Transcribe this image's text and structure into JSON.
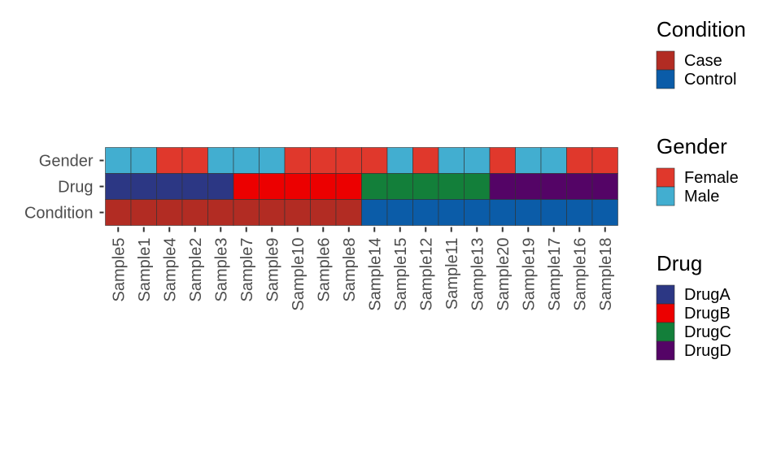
{
  "chart_data": {
    "type": "heatmap",
    "title": "",
    "xlabel": "",
    "ylabel": "",
    "grid": false,
    "legend_placement": "right",
    "rows": [
      "Gender",
      "Drug",
      "Condition"
    ],
    "columns": [
      "Sample5",
      "Sample1",
      "Sample4",
      "Sample2",
      "Sample3",
      "Sample7",
      "Sample9",
      "Sample10",
      "Sample6",
      "Sample8",
      "Sample14",
      "Sample15",
      "Sample12",
      "Sample11",
      "Sample13",
      "Sample20",
      "Sample19",
      "Sample17",
      "Sample16",
      "Sample18"
    ],
    "values": {
      "Gender": [
        "Male",
        "Male",
        "Female",
        "Female",
        "Male",
        "Male",
        "Male",
        "Female",
        "Female",
        "Female",
        "Female",
        "Male",
        "Female",
        "Male",
        "Male",
        "Female",
        "Male",
        "Male",
        "Female",
        "Female"
      ],
      "Drug": [
        "DrugA",
        "DrugA",
        "DrugA",
        "DrugA",
        "DrugA",
        "DrugB",
        "DrugB",
        "DrugB",
        "DrugB",
        "DrugB",
        "DrugC",
        "DrugC",
        "DrugC",
        "DrugC",
        "DrugC",
        "DrugD",
        "DrugD",
        "DrugD",
        "DrugD",
        "DrugD"
      ],
      "Condition": [
        "Case",
        "Case",
        "Case",
        "Case",
        "Case",
        "Case",
        "Case",
        "Case",
        "Case",
        "Case",
        "Control",
        "Control",
        "Control",
        "Control",
        "Control",
        "Control",
        "Control",
        "Control",
        "Control",
        "Control"
      ]
    },
    "legends": [
      {
        "title": "Condition",
        "entries": [
          {
            "label": "Case",
            "color": "#B22C23"
          },
          {
            "label": "Control",
            "color": "#0B5CA8"
          }
        ]
      },
      {
        "title": "Gender",
        "entries": [
          {
            "label": "Female",
            "color": "#E0382C"
          },
          {
            "label": "Male",
            "color": "#42AED0"
          }
        ]
      },
      {
        "title": "Drug",
        "entries": [
          {
            "label": "DrugA",
            "color": "#2C3784"
          },
          {
            "label": "DrugB",
            "color": "#EC0000"
          },
          {
            "label": "DrugC",
            "color": "#137F3A"
          },
          {
            "label": "DrugD",
            "color": "#540466"
          }
        ]
      }
    ]
  }
}
